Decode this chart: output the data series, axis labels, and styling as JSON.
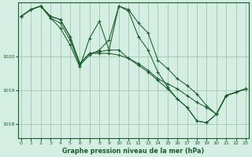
{
  "title": "Graphe pression niveau de la mer (hPa)",
  "bg_color": "#d4eee4",
  "grid_color": "#aacaba",
  "line_color": "#1a5c2a",
  "x_ticks": [
    0,
    1,
    2,
    3,
    4,
    5,
    6,
    7,
    8,
    9,
    10,
    11,
    12,
    13,
    14,
    15,
    16,
    17,
    18,
    19,
    20,
    21,
    22,
    23
  ],
  "y_ticks": [
    1018,
    1019,
    1020
  ],
  "ylim": [
    1017.6,
    1021.6
  ],
  "xlim": [
    -0.3,
    23.3
  ],
  "series": [
    [
      1021.2,
      1021.4,
      1021.5,
      1021.2,
      1021.1,
      1020.6,
      1019.8,
      1020.1,
      1020.15,
      1020.2,
      1021.5,
      1021.4,
      1021.0,
      1020.7,
      1019.9,
      1019.65,
      1019.35,
      1019.15,
      1018.9,
      1018.55,
      1018.3,
      1018.85,
      1018.95,
      1019.05
    ],
    [
      1021.2,
      1021.4,
      1021.5,
      1021.2,
      1021.1,
      1020.6,
      1019.8,
      1020.1,
      1020.1,
      1020.1,
      1020.05,
      1019.95,
      1019.8,
      1019.6,
      1019.35,
      1019.2,
      1019.05,
      1018.85,
      1018.65,
      1018.5,
      1018.3,
      1018.85,
      1018.95,
      1019.05
    ],
    [
      1021.2,
      1021.4,
      1021.5,
      1021.15,
      1021.0,
      1020.5,
      1019.75,
      1020.05,
      1020.2,
      1020.5,
      1021.5,
      1021.35,
      1020.6,
      1020.2,
      1019.55,
      1019.1,
      1018.75,
      1018.5,
      1018.1,
      1018.05,
      1018.3,
      1018.85,
      1018.95,
      1019.05
    ],
    [
      1021.2,
      1021.4,
      1021.5,
      1021.15,
      1020.85,
      1020.35,
      1019.7,
      1020.55,
      1021.05,
      1020.2,
      1020.2,
      1019.95,
      1019.75,
      1019.55,
      1019.3,
      1019.05,
      1018.75,
      1018.5,
      1018.1,
      1018.05,
      1018.3,
      1018.85,
      1018.95,
      1019.05
    ]
  ]
}
